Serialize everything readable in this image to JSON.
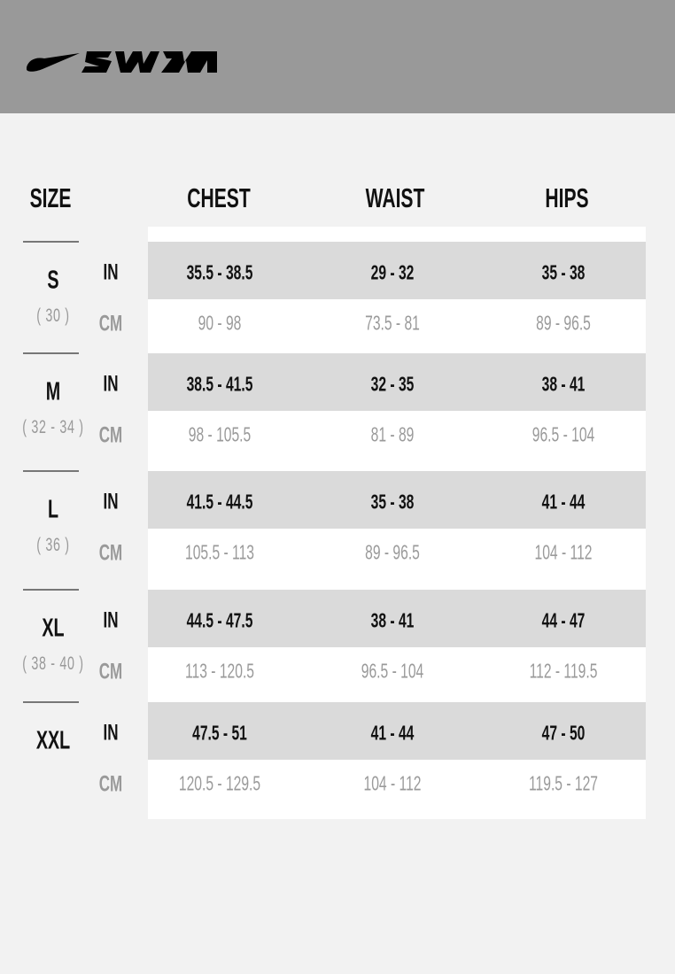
{
  "brand": {
    "logo_text": "SWIM",
    "banner_color": "#999999"
  },
  "headers": {
    "size": "SIZE",
    "chest": "CHEST",
    "waist": "WAIST",
    "hips": "HIPS"
  },
  "units": {
    "in": "IN",
    "cm": "CM"
  },
  "rows": [
    {
      "size": "S",
      "note": "( 30 )",
      "in": [
        "35.5 - 38.5",
        "29 - 32",
        "35 - 38"
      ],
      "cm": [
        "90 - 98",
        "73.5 - 81",
        "89 - 96.5"
      ]
    },
    {
      "size": "M",
      "note": "( 32 - 34 )",
      "in": [
        "38.5 - 41.5",
        "32 - 35",
        "38 - 41"
      ],
      "cm": [
        "98 - 105.5",
        "81 - 89",
        "96.5 - 104"
      ]
    },
    {
      "size": "L",
      "note": "( 36 )",
      "in": [
        "41.5 - 44.5",
        "35 - 38",
        "41 - 44"
      ],
      "cm": [
        "105.5 - 113",
        "89 - 96.5",
        "104 - 112"
      ]
    },
    {
      "size": "XL",
      "note": "( 38 - 40 )",
      "in": [
        "44.5 - 47.5",
        "38 - 41",
        "44 - 47"
      ],
      "cm": [
        "113 - 120.5",
        "96.5 - 104",
        "112 - 119.5"
      ]
    },
    {
      "size": "XXL",
      "note": "",
      "in": [
        "47.5 - 51",
        "41 - 44",
        "47 - 50"
      ],
      "cm": [
        "120.5 - 129.5",
        "104 - 112",
        "119.5 - 127"
      ]
    }
  ]
}
